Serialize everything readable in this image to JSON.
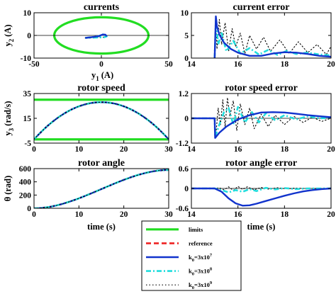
{
  "colors": {
    "limits": "#22dd22",
    "reference": "#ee2222",
    "k1": "#1133cc",
    "k2": "#22dddd",
    "k3": "#000000",
    "axis": "#000000"
  },
  "legend": [
    {
      "key": "limits",
      "text": "limits"
    },
    {
      "key": "reference",
      "text": "reference"
    },
    {
      "key": "k1",
      "text": "k0=3x10",
      "exp": "7"
    },
    {
      "key": "k2",
      "text": "k0=3x10",
      "exp": "8"
    },
    {
      "key": "k3",
      "text": "k0=3x10",
      "exp": "9"
    }
  ],
  "chart_data": [
    {
      "id": "currents",
      "type": "line",
      "title": "currents",
      "xlabel": "y1 (A)",
      "xlabel_main": "y",
      "xlabel_sub": "1",
      "xlabel_unit": "(A)",
      "ylabel": "y2 (A)",
      "ylabel_main": "y",
      "ylabel_sub": "2",
      "ylabel_unit": "(A)",
      "xlim": [
        -50,
        50
      ],
      "ylim": [
        -10,
        10
      ],
      "xticks": [
        -50,
        0,
        50
      ],
      "yticks": [
        -10,
        0,
        10
      ],
      "show_xticklabels": true,
      "limits_ellipse": {
        "rx": 35,
        "ry": 8
      },
      "traj_x": [
        -12,
        -6,
        -2,
        1,
        3,
        4,
        2,
        -3,
        -8,
        -12
      ],
      "traj_y": [
        -1.1,
        -0.7,
        -0.3,
        0.4,
        0.3,
        -0.4,
        -0.8,
        -0.9,
        -1.0,
        -1.1
      ]
    },
    {
      "id": "current_error",
      "type": "line",
      "title": "current error",
      "xlim": [
        14,
        20
      ],
      "ylim": [
        0,
        10
      ],
      "xticks": [
        14,
        16,
        18,
        20
      ],
      "yticks": [
        0,
        5,
        10
      ],
      "show_xticklabels": true,
      "series": [
        {
          "key": "k1",
          "x": [
            15,
            15.05,
            15.1,
            15.2,
            15.4,
            15.7,
            16,
            16.5,
            17,
            17.5,
            18,
            18.5,
            19,
            19.5,
            20
          ],
          "y": [
            0,
            9.2,
            7.0,
            5.2,
            3.4,
            2.0,
            1.2,
            0.5,
            0.5,
            1.0,
            1.3,
            1.2,
            0.9,
            0.5,
            0.3
          ]
        },
        {
          "key": "k2",
          "x": [
            15,
            15.05,
            15.15,
            15.3,
            15.5,
            15.8,
            16.1,
            16.5,
            16.9,
            17.3,
            17.7,
            18.1,
            18.5,
            19,
            19.5,
            20
          ],
          "y": [
            0,
            8.5,
            3.0,
            5.5,
            1.5,
            3.8,
            1.0,
            2.2,
            0.8,
            1.8,
            0.7,
            1.6,
            0.9,
            1.2,
            0.8,
            0.6
          ]
        },
        {
          "key": "k3",
          "x": [
            15,
            15.05,
            15.1,
            15.2,
            15.3,
            15.45,
            15.6,
            15.75,
            15.9,
            16.1,
            16.3,
            16.5,
            16.8,
            17.1,
            17.4,
            17.8,
            18.2,
            18.6,
            19,
            19.4,
            19.8,
            20
          ],
          "y": [
            0,
            9.0,
            2.0,
            8.5,
            3.0,
            7.8,
            1.5,
            6.5,
            2.5,
            5.5,
            1.0,
            5.0,
            2.0,
            4.6,
            1.5,
            4.0,
            1.0,
            3.6,
            1.2,
            3.0,
            0.8,
            2.6
          ]
        }
      ]
    },
    {
      "id": "rotor_speed",
      "type": "line",
      "title": "rotor speed",
      "ylabel_main": "y",
      "ylabel_sub": "3",
      "ylabel_unit": "(rad/s)",
      "xlim": [
        0,
        30
      ],
      "ylim": [
        -5,
        35
      ],
      "xticks": [
        0,
        10,
        20,
        30
      ],
      "yticks": [
        -5,
        15,
        35
      ],
      "show_xticklabels": true,
      "limits_y": [
        30,
        -2
      ],
      "reference": {
        "fn": "parabola",
        "peak": 28,
        "center": 15,
        "start": -2
      },
      "series_keys": [
        "reference",
        "k1",
        "k2",
        "k3"
      ]
    },
    {
      "id": "rotor_speed_error",
      "type": "line",
      "title": "rotor speed error",
      "xlim": [
        14,
        20
      ],
      "ylim": [
        -1.2,
        1.2
      ],
      "xticks": [
        14,
        16,
        18,
        20
      ],
      "yticks": [
        -1.2,
        0,
        1.2
      ],
      "show_xticklabels": true,
      "series": [
        {
          "key": "k1",
          "x": [
            14,
            15,
            15.02,
            15.2,
            15.5,
            16,
            16.5,
            17,
            17.5,
            18,
            18.5,
            19,
            19.5,
            20
          ],
          "y": [
            0,
            0,
            -0.95,
            -0.7,
            -0.4,
            -0.05,
            0.15,
            0.28,
            0.3,
            0.28,
            0.22,
            0.15,
            0.1,
            0.05
          ]
        },
        {
          "key": "k2",
          "x": [
            14,
            15,
            15.02,
            15.2,
            15.4,
            15.6,
            15.8,
            16.0,
            16.3,
            16.6,
            16.9,
            17.2,
            17.6,
            18,
            18.5,
            19,
            19.5,
            20
          ],
          "y": [
            0,
            0,
            -0.9,
            -0.3,
            0.3,
            0.5,
            -0.3,
            0.55,
            -0.2,
            0.3,
            -0.2,
            0.25,
            -0.1,
            0.15,
            -0.05,
            0.1,
            0,
            0.02
          ]
        },
        {
          "key": "k3",
          "x": [
            14,
            15,
            15.05,
            15.15,
            15.25,
            15.35,
            15.45,
            15.55,
            15.65,
            15.8,
            15.95,
            16.1,
            16.3,
            16.5,
            16.7,
            17,
            17.3,
            17.6,
            18,
            18.4,
            18.8,
            19.2,
            19.6,
            20
          ],
          "y": [
            0,
            0,
            -0.8,
            0.5,
            -0.3,
            0.9,
            -0.4,
            1.0,
            0.1,
            0.85,
            -0.6,
            0.7,
            -0.3,
            0.5,
            -0.5,
            0.2,
            -0.4,
            0.15,
            -0.3,
            0.1,
            -0.2,
            0.05,
            -0.15,
            0
          ]
        }
      ]
    },
    {
      "id": "rotor_angle",
      "type": "line",
      "title": "rotor angle",
      "xlabel": "time (s)",
      "ylabel_main": "θ",
      "ylabel_unit": "(rad)",
      "xlim": [
        0,
        30
      ],
      "ylim": [
        0,
        600
      ],
      "xticks": [
        0,
        10,
        20,
        30
      ],
      "yticks": [
        0,
        200,
        400,
        600
      ],
      "show_xticklabels": true,
      "reference": {
        "fn": "integral",
        "final": 580
      },
      "series_keys": [
        "reference",
        "k1",
        "k2",
        "k3"
      ]
    },
    {
      "id": "rotor_angle_error",
      "type": "line",
      "title": "rotor angle error",
      "xlabel": "time (s)",
      "xlim": [
        14,
        20
      ],
      "ylim": [
        -0.6,
        0.6
      ],
      "xticks": [
        14,
        16,
        18,
        20
      ],
      "yticks": [
        -0.6,
        0,
        0.6
      ],
      "show_xticklabels": true,
      "series": [
        {
          "key": "k1",
          "x": [
            14,
            15,
            15.3,
            15.6,
            15.9,
            16.2,
            16.5,
            16.8,
            17.2,
            17.6,
            18,
            18.4,
            18.8,
            19.2,
            19.6,
            20
          ],
          "y": [
            0,
            0,
            -0.1,
            -0.3,
            -0.45,
            -0.52,
            -0.51,
            -0.46,
            -0.38,
            -0.3,
            -0.22,
            -0.15,
            -0.09,
            -0.05,
            -0.02,
            0
          ]
        },
        {
          "key": "k2",
          "x": [
            14,
            15,
            15.3,
            15.6,
            15.9,
            16.2,
            16.5,
            16.8,
            17.2,
            17.6,
            18,
            18.5,
            19,
            19.5,
            20
          ],
          "y": [
            0,
            0,
            -0.05,
            -0.12,
            -0.05,
            -0.1,
            -0.02,
            -0.08,
            0.02,
            -0.03,
            0.01,
            -0.02,
            0,
            0,
            0
          ]
        },
        {
          "key": "k3",
          "x": [
            14,
            15,
            15.2,
            15.4,
            15.6,
            15.8,
            16,
            16.2,
            16.4,
            16.7,
            17,
            17.3,
            17.7,
            18.1,
            18.5,
            19,
            19.5,
            20
          ],
          "y": [
            0,
            0,
            0.02,
            -0.04,
            0.05,
            -0.06,
            0.06,
            -0.03,
            0.05,
            -0.04,
            0.03,
            -0.02,
            0.02,
            -0.01,
            0.01,
            0,
            0,
            0
          ]
        }
      ]
    }
  ]
}
